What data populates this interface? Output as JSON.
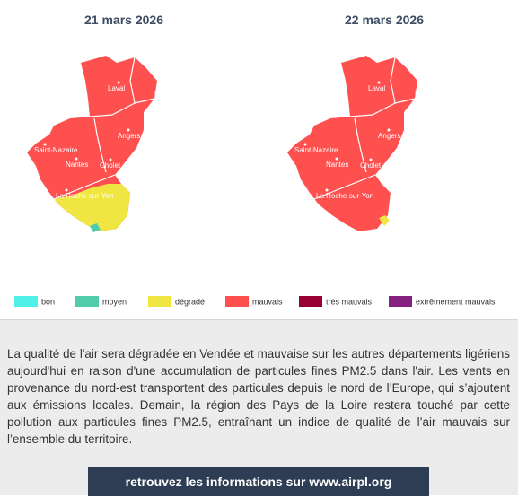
{
  "maps": [
    {
      "date": "21 mars 2026",
      "cities": [
        "Laval",
        "Le Mans",
        "Angers",
        "Saint-Nazaire",
        "Nantes",
        "Cholet",
        "La Roche-sur-Yon"
      ]
    },
    {
      "date": "22 mars 2026",
      "cities": [
        "Laval",
        "Le Mans",
        "Angers",
        "Saint-Nazaire",
        "Nantes",
        "Cholet",
        "La Roche-sur-Yon"
      ]
    }
  ],
  "legend": [
    {
      "label": "bon",
      "color": "#50f0e6"
    },
    {
      "label": "moyen",
      "color": "#50ccaa"
    },
    {
      "label": "dégradé",
      "color": "#f0e641"
    },
    {
      "label": "mauvais",
      "color": "#ff5050"
    },
    {
      "label": "très mauvais",
      "color": "#960032"
    },
    {
      "label": "extrêmement mauvais",
      "color": "#872181"
    }
  ],
  "info": {
    "paragraph": "La qualité de l'air sera dégradée en Vendée et mauvaise sur les autres départements ligériens aujourd'hui en raison d'une accumulation de particules fines PM2.5 dans l'air. Les vents en provenance du nord-est transportent des particules depuis le nord de l’Europe, qui s’ajoutent aux émissions locales. Demain, la région des Pays de la Loire restera touché par cette pollution aux particules fines PM2.5, entraînant un indice de qualité de l’air mauvais sur l’ensemble du territoire.",
    "button": "retrouvez les informations sur www.airpl.org"
  }
}
